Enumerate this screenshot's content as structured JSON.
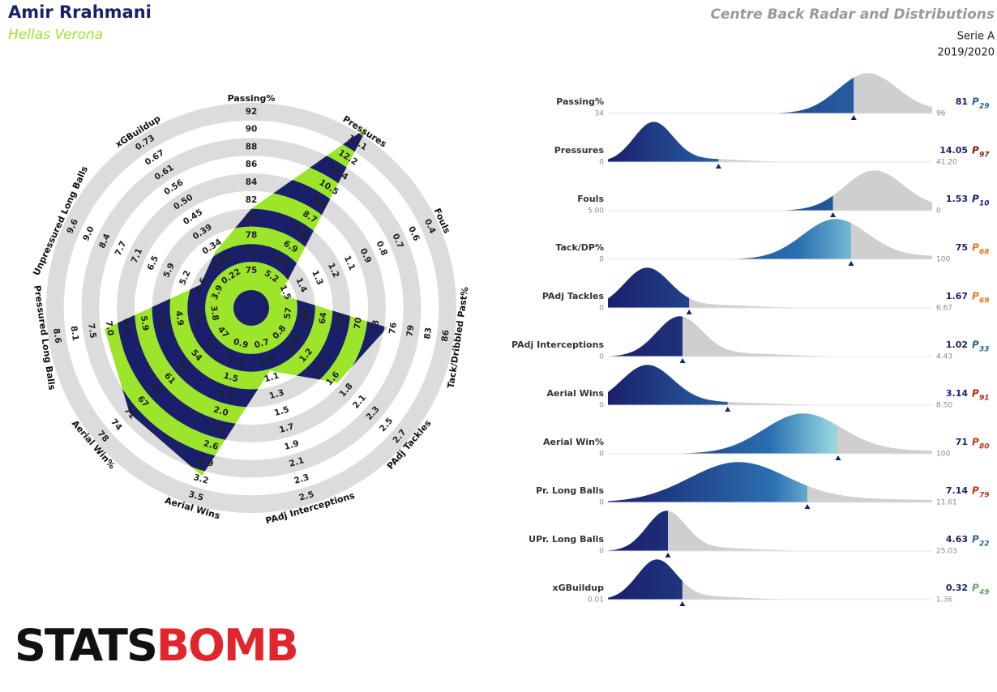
{
  "header": {
    "player": "Amir Rrahmani",
    "team": "Hellas Verona",
    "title": "Centre Back Radar and Distributions",
    "competition": "Serie A",
    "season": "2019/2020"
  },
  "logo": {
    "part1": "STATS",
    "part2": "BOMB"
  },
  "chart_data": {
    "type": "radar",
    "fill_color": "#9de52a",
    "band_color": "#1a1f6b",
    "ring_color": "#dcdcdc",
    "percentile_prefix": "P",
    "metrics": [
      {
        "radar_label": "Passing%",
        "dist_label": "Passing%",
        "ticks": [
          75,
          77,
          78,
          80,
          82,
          84,
          86,
          88,
          90,
          92
        ],
        "value": 81,
        "xlim": [
          34,
          96
        ],
        "percentile": 29,
        "percentile_color": "#2a6496"
      },
      {
        "radar_label": "Pressures",
        "dist_label": "Pressures",
        "ticks": [
          5.2,
          6.1,
          6.9,
          7.8,
          8.7,
          9.6,
          10.5,
          11.4,
          12.2,
          13.1
        ],
        "value": 14.05,
        "xlim": [
          0,
          {
            "value": 41.2,
            "label": "41.20"
          }
        ],
        "percentile": 97,
        "percentile_color": "#8b1a10"
      },
      {
        "radar_label": "Fouls",
        "dist_label": "Fouls",
        "ticks": [
          1.5,
          1.4,
          1.3,
          1.2,
          1.1,
          0.9,
          0.8,
          0.7,
          0.6,
          0.4
        ],
        "value": 1.53,
        "xlim": [
          {
            "value": 5,
            "label": "5.00"
          },
          0
        ],
        "percentile": 10,
        "percentile_color": "#1a1f6b"
      },
      {
        "radar_label": "Tack/Dribbled Past%",
        "dist_label": "Tack/DP%",
        "ticks": [
          57,
          60,
          64,
          67,
          70,
          73,
          76,
          79,
          83,
          86
        ],
        "value": 75,
        "xlim": [
          0,
          100
        ],
        "percentile": 68,
        "percentile_color": "#e07b1a"
      },
      {
        "radar_label": "PAdj Tackles",
        "dist_label": "PAdj Tackles",
        "ticks": [
          0.8,
          {
            "value": 1,
            "label": "1.0"
          },
          1.2,
          1.4,
          1.6,
          1.8,
          2.1,
          2.3,
          2.5,
          2.7
        ],
        "value": 1.67,
        "xlim": [
          0,
          6.67
        ],
        "percentile": 69,
        "percentile_color": "#e07b1a"
      },
      {
        "radar_label": "PAdj Interceptions",
        "dist_label": "PAdj Interceptions",
        "ticks": [
          0.7,
          0.9,
          1.1,
          1.3,
          1.5,
          1.7,
          1.9,
          2.1,
          2.3,
          2.5
        ],
        "value": 1.02,
        "xlim": [
          0,
          4.43
        ],
        "percentile": 33,
        "percentile_color": "#2a6496"
      },
      {
        "radar_label": "Aerial Wins",
        "dist_label": "Aerial Wins",
        "ticks": [
          0.9,
          1.2,
          1.5,
          1.7,
          {
            "value": 2,
            "label": "2.0"
          },
          2.3,
          2.6,
          2.9,
          3.2,
          3.5
        ],
        "value": 3.14,
        "xlim": [
          0,
          {
            "value": 8.5,
            "label": "8.50"
          }
        ],
        "percentile": 91,
        "percentile_color": "#b8260f"
      },
      {
        "radar_label": "Aerial Win%",
        "dist_label": "Aerial Win%",
        "ticks": [
          47,
          51,
          54,
          57,
          61,
          64,
          67,
          71,
          74,
          78
        ],
        "value": 71,
        "xlim": [
          0,
          100
        ],
        "percentile": 80,
        "percentile_color": "#c0391b"
      },
      {
        "radar_label": "Pressured Long Balls",
        "dist_label": "Pr. Long Balls",
        "ticks": [
          3.8,
          4.3,
          4.9,
          5.4,
          5.9,
          6.5,
          {
            "value": 7,
            "label": "7.0"
          },
          7.5,
          8.1,
          8.6
        ],
        "value": 7.14,
        "xlim": [
          0,
          11.61
        ],
        "percentile": 79,
        "percentile_color": "#c0391b"
      },
      {
        "radar_label": "Unpressured Long Balls",
        "dist_label": "UPr. Long Balls",
        "ticks": [
          3.9,
          4.6,
          5.2,
          5.9,
          6.5,
          7.1,
          7.7,
          8.4,
          {
            "value": 9,
            "label": "9.0"
          },
          9.6
        ],
        "value": 4.63,
        "xlim": [
          0,
          25.03
        ],
        "percentile": 22,
        "percentile_color": "#2a6496"
      },
      {
        "radar_label": "xGBuildup",
        "dist_label": "xGBuildup",
        "ticks": [
          0.22,
          0.28,
          0.34,
          0.39,
          0.45,
          {
            "value": 0.5,
            "label": "0.50"
          },
          0.56,
          0.61,
          0.67,
          0.73
        ],
        "value": 0.32,
        "xlim": [
          0.01,
          1.36
        ],
        "percentile": 49,
        "percentile_color": "#6aa36a"
      }
    ]
  }
}
